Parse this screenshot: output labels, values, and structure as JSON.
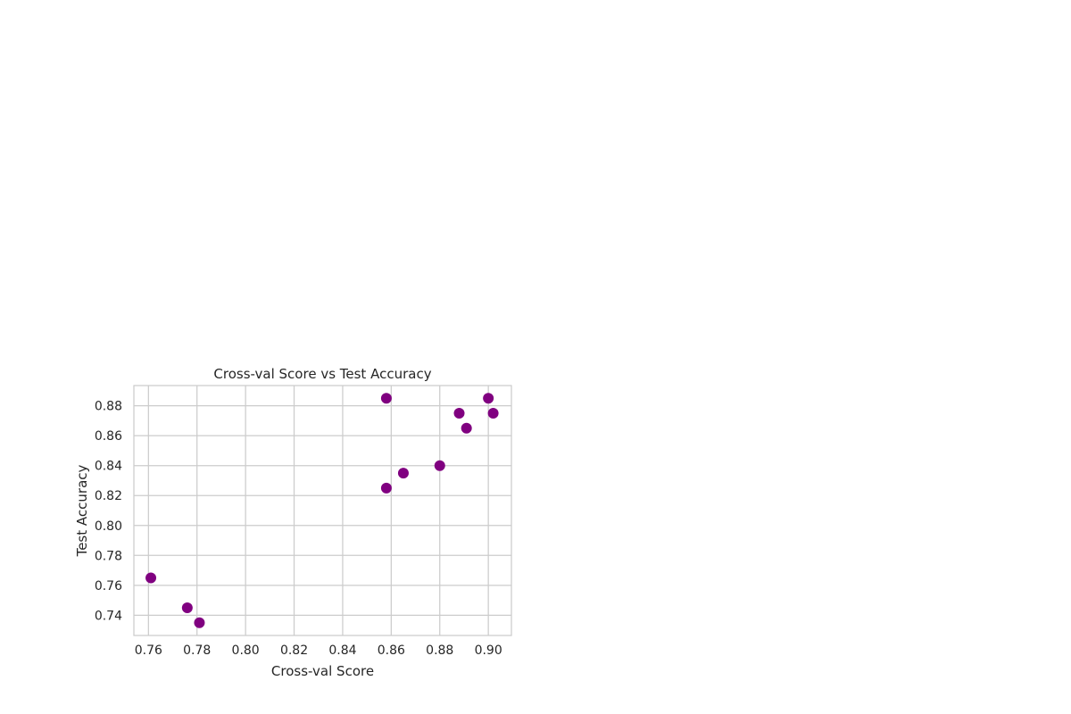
{
  "chart_data": {
    "type": "scatter",
    "title": "Cross-val Score vs Test Accuracy",
    "xlabel": "Cross-val Score",
    "ylabel": "Test Accuracy",
    "xlim": [
      0.754,
      0.9095
    ],
    "ylim": [
      0.7265,
      0.8935
    ],
    "xticks": [
      0.76,
      0.78,
      0.8,
      0.82,
      0.84,
      0.86,
      0.88,
      0.9
    ],
    "xtick_labels": [
      "0.76",
      "0.78",
      "0.80",
      "0.82",
      "0.84",
      "0.86",
      "0.88",
      "0.90"
    ],
    "yticks": [
      0.74,
      0.76,
      0.78,
      0.8,
      0.82,
      0.84,
      0.86,
      0.88
    ],
    "ytick_labels": [
      "0.74",
      "0.76",
      "0.78",
      "0.80",
      "0.82",
      "0.84",
      "0.86",
      "0.88"
    ],
    "grid": true,
    "marker_color": "#800080",
    "points": [
      {
        "x": 0.761,
        "y": 0.765
      },
      {
        "x": 0.776,
        "y": 0.745
      },
      {
        "x": 0.781,
        "y": 0.735
      },
      {
        "x": 0.858,
        "y": 0.885
      },
      {
        "x": 0.858,
        "y": 0.825
      },
      {
        "x": 0.865,
        "y": 0.835
      },
      {
        "x": 0.88,
        "y": 0.84
      },
      {
        "x": 0.888,
        "y": 0.875
      },
      {
        "x": 0.891,
        "y": 0.865
      },
      {
        "x": 0.9,
        "y": 0.885
      },
      {
        "x": 0.902,
        "y": 0.875
      }
    ]
  }
}
